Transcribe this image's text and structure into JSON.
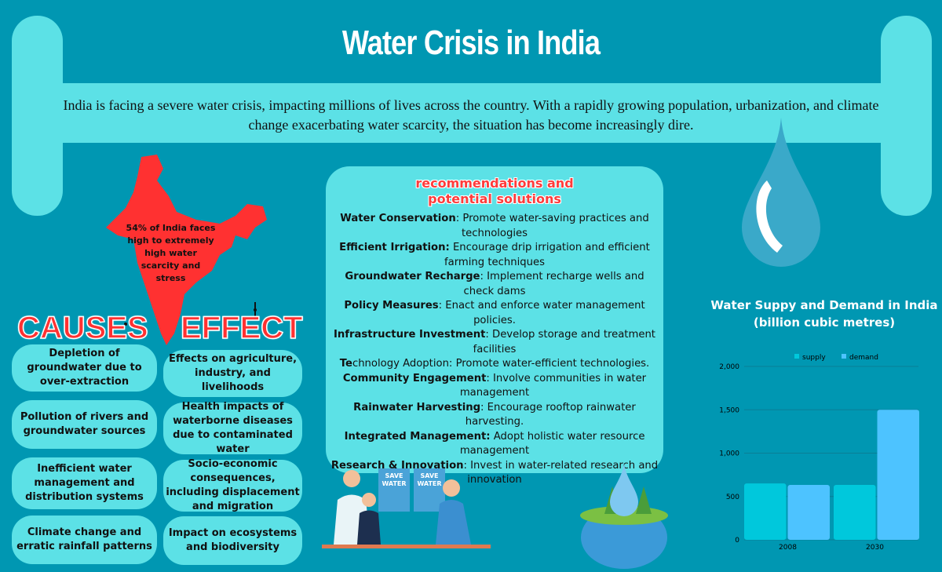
{
  "title": "Water Crisis in India",
  "intro": "India is facing a severe water crisis, impacting millions of lives across the country. With a rapidly growing population, urbanization, and climate change exacerbating water scarcity, the situation has become increasingly dire.",
  "map_stat": "54% of India faces high to extremely high water scarcity and stress",
  "recommendations": {
    "title_line1": "recommendations and",
    "title_line2": "potential solutions",
    "items": [
      {
        "label": "Water Conservation",
        "text": ": Promote water-saving practices and technologies"
      },
      {
        "label": "Efficient Irrigation:",
        "text": " Encourage drip irrigation and efficient farming techniques"
      },
      {
        "label": "Groundwater Recharge",
        "text": ": Implement recharge wells and check dams"
      },
      {
        "label": "Policy Measures",
        "text": ": Enact and enforce water management policies."
      },
      {
        "label": "Infrastructure Investment",
        "text": ": Develop storage and treatment facilities"
      },
      {
        "label": "Te",
        "text": "chnology Adoption: Promote water-efficient technologies."
      },
      {
        "label": "Community Engagement",
        "text": ": Involve communities in water management"
      },
      {
        "label": "Rainwater Harvesting",
        "text": ": Encourage rooftop rainwater harvesting."
      },
      {
        "label": "Integrated Management:",
        "text": " Adopt holistic water resource management"
      },
      {
        "label": "Research & Innovation",
        "text": ": Invest in water-related research and innovation"
      }
    ]
  },
  "causes": {
    "heading": "CAUSES",
    "items": [
      "Depletion of groundwater due to over-extraction",
      "Pollution of rivers and groundwater sources",
      "Inefficient water management and distribution systems",
      "Climate change and erratic rainfall patterns"
    ]
  },
  "effects": {
    "heading": "EFFECT",
    "items": [
      "Effects on agriculture, industry, and livelihoods",
      "Health impacts of waterborne diseases due to contaminated water",
      "Socio-economic consequences, including displacement and migration",
      "Impact on ecosystems and biodiversity"
    ]
  },
  "poster_text": [
    "SAVE WATER",
    "SAVE WATER"
  ],
  "colors": {
    "background": "#0097b2",
    "panel": "#5ce1e6",
    "accent_red": "#ff3131",
    "supply": "#00c8dc",
    "demand": "#4dc3ff"
  },
  "chart_data": {
    "type": "bar",
    "title": "Water Suppy and Demand in India (billion cubic metres)",
    "categories": [
      "2008",
      "2030"
    ],
    "series": [
      {
        "name": "supply",
        "values": [
          650,
          634
        ]
      },
      {
        "name": "demand",
        "values": [
          634,
          1500
        ]
      }
    ],
    "ylim": [
      0,
      2000
    ],
    "yticks": [
      "0",
      "500",
      "1,000",
      "1,500",
      "2,000"
    ],
    "legend": "top",
    "grid": true
  }
}
